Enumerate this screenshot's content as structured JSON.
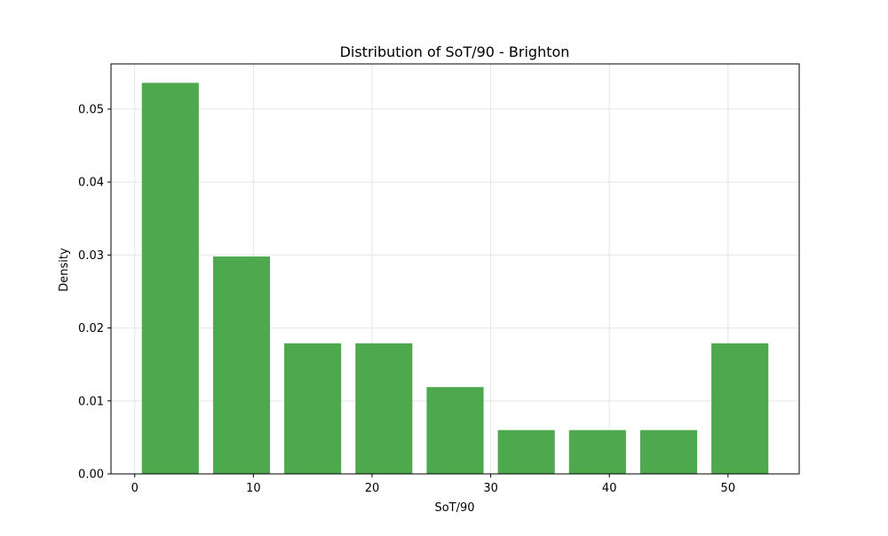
{
  "chart_data": {
    "type": "bar",
    "title": "Distribution of SoT/90 - Brighton",
    "xlabel": "SoT/90",
    "ylabel": "Density",
    "bar_color": "#4ea84e",
    "grid": true,
    "xlim": [
      -2,
      56
    ],
    "ylim": [
      0,
      0.0562
    ],
    "x_ticks": [
      0,
      10,
      20,
      30,
      40,
      50
    ],
    "y_ticks": [
      0.0,
      0.01,
      0.02,
      0.03,
      0.04,
      0.05
    ],
    "x_tick_labels": [
      "0",
      "10",
      "20",
      "30",
      "40",
      "50"
    ],
    "y_tick_labels": [
      "0.00",
      "0.01",
      "0.02",
      "0.03",
      "0.04",
      "0.05"
    ],
    "bins": [
      {
        "x_start": 0.6,
        "x_end": 5.4,
        "value": 0.0536
      },
      {
        "x_start": 6.6,
        "x_end": 11.4,
        "value": 0.0298
      },
      {
        "x_start": 12.6,
        "x_end": 17.4,
        "value": 0.0179
      },
      {
        "x_start": 18.6,
        "x_end": 23.4,
        "value": 0.0179
      },
      {
        "x_start": 24.6,
        "x_end": 29.4,
        "value": 0.0119
      },
      {
        "x_start": 30.6,
        "x_end": 35.4,
        "value": 0.006
      },
      {
        "x_start": 36.6,
        "x_end": 41.4,
        "value": 0.006
      },
      {
        "x_start": 42.6,
        "x_end": 47.4,
        "value": 0.006
      },
      {
        "x_start": 48.6,
        "x_end": 53.4,
        "value": 0.0179
      }
    ]
  }
}
